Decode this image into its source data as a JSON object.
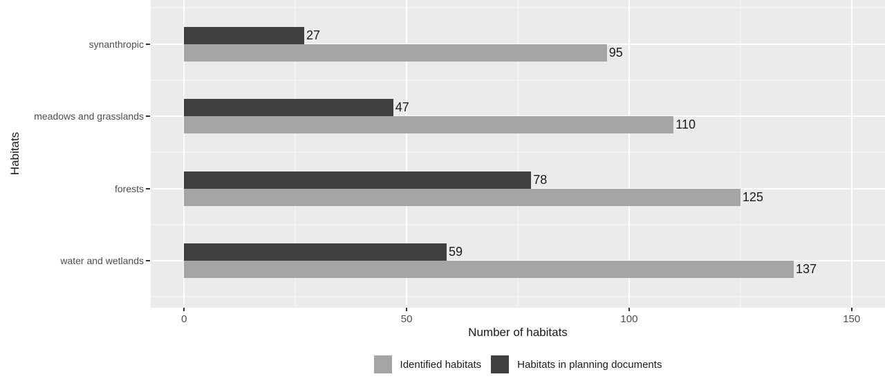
{
  "chart_data": {
    "type": "bar",
    "orientation": "horizontal",
    "title": "",
    "xlabel": "Number of habitats",
    "ylabel": "Habitats",
    "xlim": [
      -7.5,
      157.5
    ],
    "x_ticks": [
      0,
      50,
      100,
      150
    ],
    "x_minor_ticks": [
      25,
      75,
      125
    ],
    "grid": "on",
    "legend_position": "bottom",
    "panel_background": "#ebebeb",
    "gridline_color": "#ffffff",
    "axis_text_color": "#4d4d4d",
    "label_text_color": "#1a1a1a",
    "series": [
      {
        "key": "identified",
        "name": "Identified habitats",
        "color": "#a5a5a5"
      },
      {
        "key": "planning",
        "name": "Habitats in planning documents",
        "color": "#3f3f3f"
      }
    ],
    "rows": [
      {
        "category": "synanthropic",
        "planning": 27,
        "identified": 95
      },
      {
        "category": "meadows and grasslands",
        "planning": 47,
        "identified": 110
      },
      {
        "category": "forests",
        "planning": 78,
        "identified": 125
      },
      {
        "category": "water and wetlands",
        "planning": 59,
        "identified": 137
      }
    ]
  }
}
